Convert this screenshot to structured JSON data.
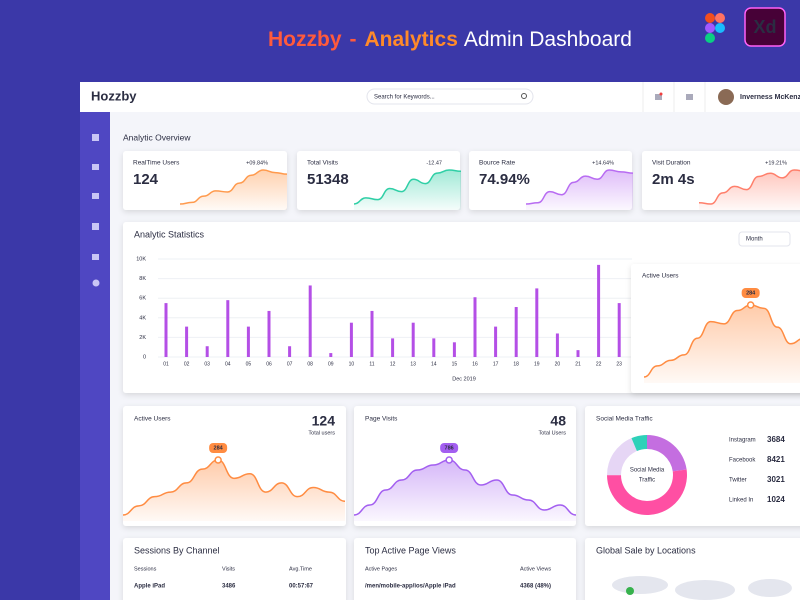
{
  "banner": {
    "brand": "Hozzby",
    "dash": "-",
    "highlight": "Analytics",
    "rest": "Admin Dashboard",
    "xd": "Xd"
  },
  "topbar": {
    "logo": "Hozzby",
    "search_placeholder": "Search for Keywords...",
    "user": "Inverness McKenzie"
  },
  "overview": {
    "title": "Analytic Overview",
    "cards": [
      {
        "label": "RealTime Users",
        "change": "+09.84%",
        "value": "124",
        "color": "#ff9a4d",
        "change_color": "#37b24d",
        "trend": [
          5,
          8,
          20,
          30,
          28,
          45,
          60,
          70,
          65,
          62
        ]
      },
      {
        "label": "Total Visits",
        "change": "-12.47",
        "value": "51348",
        "color": "#2fcfa6",
        "change_color": "#f03e3e",
        "trend": [
          5,
          15,
          12,
          30,
          25,
          45,
          38,
          55,
          60,
          58
        ]
      },
      {
        "label": "Bource Rate",
        "change": "+14.64%",
        "value": "74.94%",
        "color": "#b86cf2",
        "change_color": "#37b24d",
        "trend": [
          10,
          12,
          30,
          25,
          45,
          55,
          50,
          65,
          62,
          60
        ]
      },
      {
        "label": "Visit Duration",
        "change": "+19.21%",
        "value": "2m 4s",
        "color": "#ff7f6b",
        "change_color": "#37b24d",
        "trend": [
          10,
          8,
          25,
          35,
          30,
          50,
          55,
          48,
          60,
          58
        ]
      }
    ]
  },
  "statistics": {
    "type": "bar",
    "title": "Analytic Statistics",
    "period": "Month",
    "x_label": "Dec 2019",
    "color": "#b44fe6",
    "categories": [
      "01",
      "02",
      "03",
      "04",
      "05",
      "06",
      "07",
      "08",
      "09",
      "10",
      "11",
      "12",
      "13",
      "14",
      "15",
      "16",
      "17",
      "18",
      "19",
      "20",
      "21",
      "22",
      "23"
    ],
    "values": [
      5500,
      3100,
      1100,
      5800,
      3100,
      4700,
      1100,
      7300,
      400,
      3500,
      4700,
      1900,
      3500,
      1900,
      1500,
      6100,
      3100,
      5100,
      7000,
      2400,
      700,
      9400,
      5500
    ],
    "ylim": [
      0,
      10000
    ],
    "yticks": [
      0,
      {
        "value": 2000,
        "label": "2K"
      },
      {
        "value": 4000,
        "label": "4K"
      },
      {
        "value": 6000,
        "label": "6K"
      },
      {
        "value": 8000,
        "label": "8K"
      },
      {
        "value": 10000,
        "label": "10K"
      }
    ]
  },
  "active_popup": {
    "title": "Active Users",
    "marker": "284",
    "color": "#ff8c42",
    "trend": [
      10,
      20,
      25,
      30,
      45,
      60,
      58,
      70,
      75,
      72,
      55,
      40,
      45
    ]
  },
  "active_users": {
    "title": "Active Users",
    "value": "124",
    "sub": "Total users",
    "marker": "284",
    "color": "#ff8c42",
    "trend": [
      10,
      20,
      30,
      35,
      45,
      60,
      70,
      50,
      55,
      35,
      45,
      30,
      40,
      35,
      25
    ]
  },
  "page_visits": {
    "title": "Page Visits",
    "value": "48",
    "sub": "Total Users",
    "marker": "786",
    "color": "#a35ff0",
    "trend": [
      15,
      25,
      40,
      50,
      60,
      65,
      70,
      60,
      45,
      50,
      35,
      30,
      20,
      25,
      15
    ]
  },
  "social": {
    "title": "Social Media Traffic",
    "center": [
      "Social Media",
      "Traffic"
    ],
    "items": [
      {
        "name": "Instagram",
        "value": 3684,
        "color": "#c46ee0"
      },
      {
        "name": "Facebook",
        "value": 8421,
        "color": "#ff4fa3"
      },
      {
        "name": "Twitter",
        "value": 3021,
        "color": "#e6d6f5"
      },
      {
        "name": "Linked In",
        "value": 1024,
        "color": "#2ed1b9"
      }
    ]
  },
  "sessions": {
    "title": "Sessions By Channel",
    "columns": [
      "Sessions",
      "Visits",
      "Avg.Time"
    ],
    "rows": [
      [
        "Apple iPad",
        "3486",
        "00:57:67"
      ]
    ]
  },
  "pages": {
    "title": "Top Active Page Views",
    "columns": [
      "Active Pages",
      "Active Views"
    ],
    "rows": [
      [
        "/men/mobile-app/ios/Apple iPad",
        "4368 (48%)"
      ]
    ]
  },
  "global": {
    "title": "Global Sale by Locations"
  }
}
